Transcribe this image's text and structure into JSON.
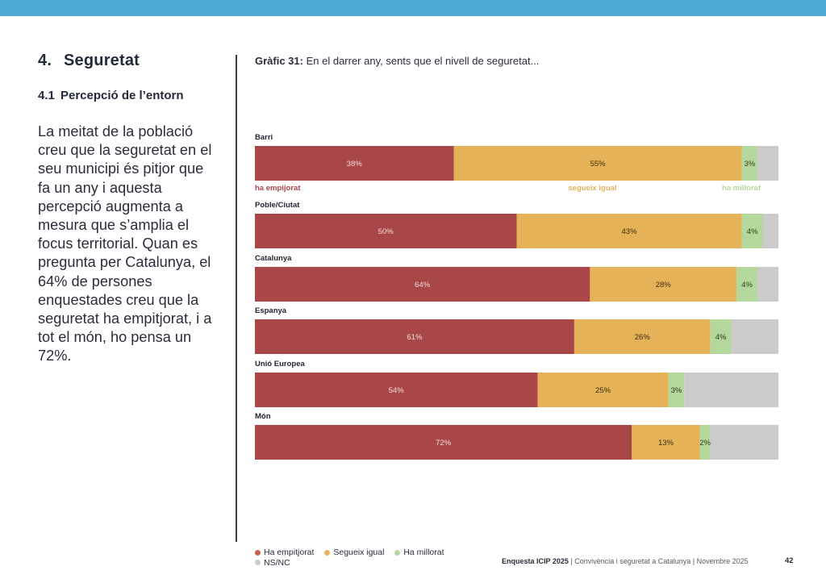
{
  "header": {
    "band_color": "#4fabd5"
  },
  "section": {
    "number": "4.",
    "title": "Seguretat"
  },
  "subsection": {
    "number": "4.1",
    "title": "Percepció de l’entorn"
  },
  "body_text": "La meitat de la població creu que la seguretat en el seu municipi és pitjor que fa un any i aquesta percepció augmenta a mesura que s’amplia el focus territorial. Quan es pregunta per Catalunya, el 64% de persones enquestades creu que la seguretat ha empitjorat, i a tot el món, ho pensa un 72%.",
  "chart_title": {
    "prefix": "Gràfic 31:",
    "text": " En el darrer any, sents que el nivell de seguretat..."
  },
  "chart_data": {
    "type": "bar",
    "orientation": "horizontal",
    "stacked": true,
    "title": "Gràfic 31: En el darrer any, sents que el nivell de seguretat...",
    "xlabel": "",
    "ylabel": "",
    "xlim": [
      0,
      100
    ],
    "unit": "%",
    "grid": false,
    "legend_position": "bottom-left",
    "categories": [
      "Barri",
      "Poble/Ciutat",
      "Catalunya",
      "Espanya",
      "Unió Europea",
      "Món"
    ],
    "series": [
      {
        "name": "Ha empitjorat",
        "color": "#a84648",
        "label_color": "#f2dede",
        "values": [
          38,
          50,
          64,
          61,
          54,
          72
        ]
      },
      {
        "name": "Segueix igual",
        "color": "#e5b257",
        "label_color": "#3a2e10",
        "values": [
          55,
          43,
          28,
          26,
          25,
          13
        ]
      },
      {
        "name": "Ha millorat",
        "color": "#b4d89b",
        "label_color": "#2e3a22",
        "values": [
          3,
          4,
          4,
          4,
          3,
          2
        ]
      },
      {
        "name": "NS/NC",
        "color": "#cbcbcb",
        "label_color": "",
        "values": [
          4,
          3,
          4,
          9,
          18,
          13
        ]
      }
    ],
    "shown_labels": [
      [
        true,
        true,
        true,
        false
      ],
      [
        true,
        true,
        true,
        false
      ],
      [
        true,
        true,
        true,
        false
      ],
      [
        true,
        true,
        true,
        false
      ],
      [
        true,
        true,
        true,
        false
      ],
      [
        true,
        true,
        true,
        false
      ]
    ],
    "annotations": [
      {
        "row": 0,
        "series": 0,
        "text": "ha empijorat",
        "color": "#a84648",
        "align": "start"
      },
      {
        "row": 0,
        "series": 1,
        "text": "segueix igual",
        "color": "#e5b257",
        "align": "end-of-segment"
      },
      {
        "row": 0,
        "series": 2,
        "text": "ha millorat",
        "color": "#b4d89b",
        "align": "end"
      }
    ]
  },
  "legend": {
    "items": [
      {
        "label": "Ha empitjorat",
        "color": "#c9634f"
      },
      {
        "label": "Segueix igual",
        "color": "#e9b45a"
      },
      {
        "label": "Ha millorat",
        "color": "#b4d89b"
      },
      {
        "label": "NS/NC",
        "color": "#cbcbcb"
      }
    ]
  },
  "footer": {
    "publication": "Enquesta ICIP 2025",
    "rest": " | Convivència i seguretat a Catalunya | Novembre 2025",
    "page_number": "42"
  }
}
